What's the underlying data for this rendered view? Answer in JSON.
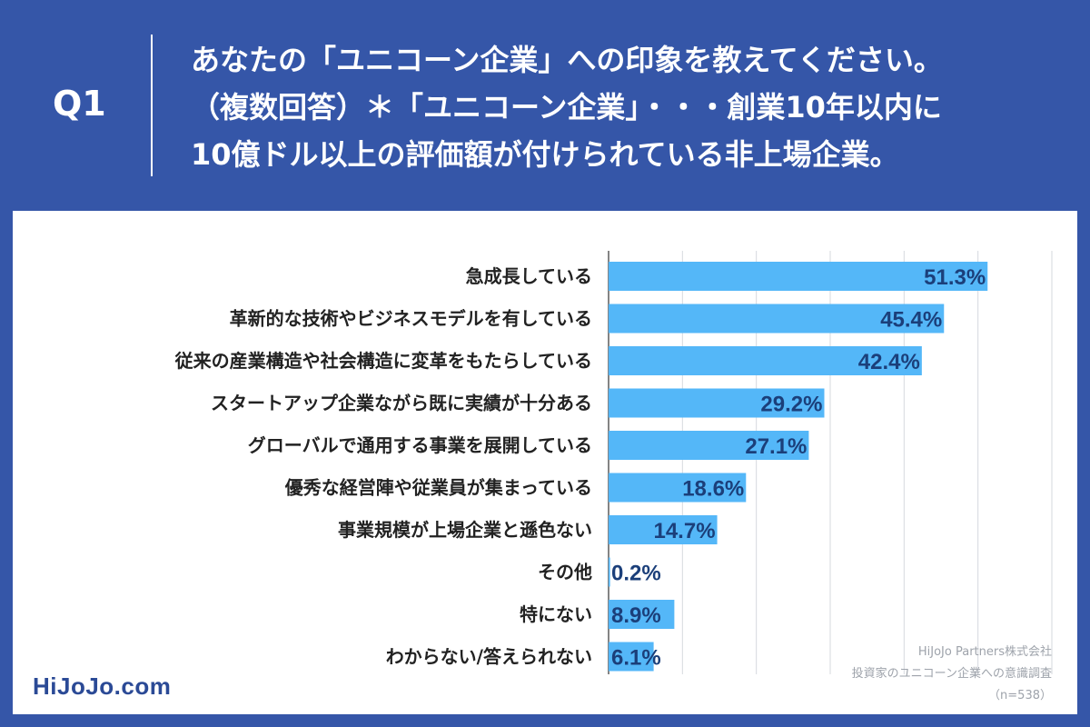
{
  "header": {
    "q_number": "Q1",
    "question_lines": [
      "あなたの「ユニコーン企業」への印象を教えてください。",
      "（複数回答）＊「ユニコーン企業」・・・創業10年以内に",
      "10億ドル以上の評価額が付けられている非上場企業。"
    ]
  },
  "brand": "HiJoJo.com",
  "source": {
    "company": "HiJoJo Partners株式会社",
    "survey": "投資家のユニコーン企業への意識調査",
    "sample": "（n=538）"
  },
  "colors": {
    "background": "#3556a8",
    "bar": "#54b7f8",
    "value_text": "#1b3f7a",
    "category_text": "#222222",
    "grid": "#d6d9de"
  },
  "chart_data": {
    "type": "bar",
    "orientation": "horizontal",
    "title": "あなたの「ユニコーン企業」への印象を教えてください。",
    "categories": [
      "急成長している",
      "革新的な技術やビジネスモデルを有している",
      "従来の産業構造や社会構造に変革をもたらしている",
      "スタートアップ企業ながら既に実績が十分ある",
      "グローバルで通用する事業を展開している",
      "優秀な経営陣や従業員が集まっている",
      "事業規模が上場企業と遜色ない",
      "その他",
      "特にない",
      "わからない/答えられない"
    ],
    "values": [
      51.3,
      45.4,
      42.4,
      29.2,
      27.1,
      18.6,
      14.7,
      0.2,
      8.9,
      6.1
    ],
    "value_labels": [
      "51.3%",
      "45.4%",
      "42.4%",
      "29.2%",
      "27.1%",
      "18.6%",
      "14.7%",
      "0.2%",
      "8.9%",
      "6.1%"
    ],
    "xlim": [
      0,
      60
    ],
    "grid": true,
    "unit": "%"
  }
}
